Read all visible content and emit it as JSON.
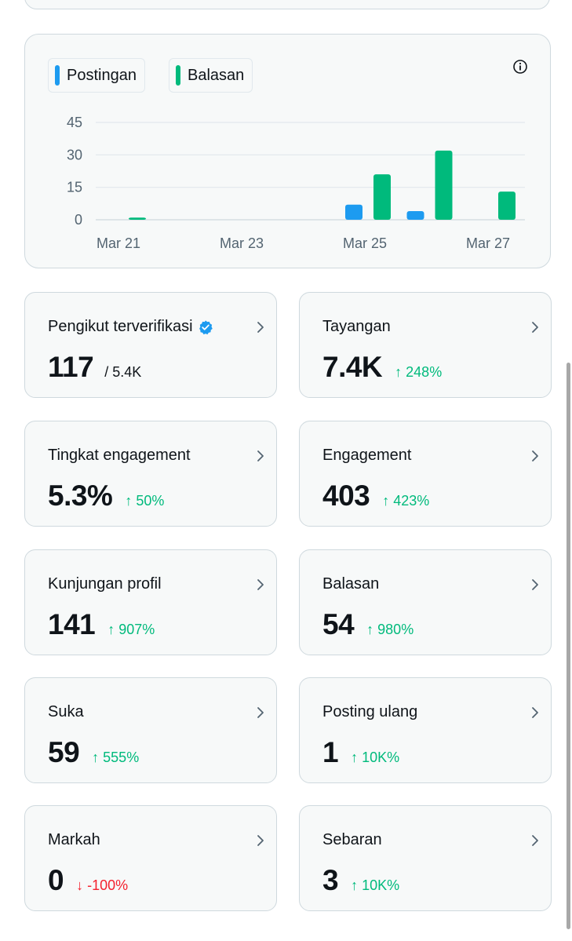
{
  "legend": {
    "posts_label": "Postingan",
    "replies_label": "Balasan",
    "posts_color": "#1d9bf0",
    "replies_color": "#00ba7c"
  },
  "icons": {
    "info": "info-icon",
    "chevron": "chevron-right-icon",
    "verified": "verified-badge-icon"
  },
  "chart_data": {
    "type": "bar",
    "x": [
      "Mar 21",
      "Mar 22",
      "Mar 23",
      "Mar 24",
      "Mar 25",
      "Mar 26",
      "Mar 27"
    ],
    "x_tick_labels": [
      "Mar 21",
      "Mar 23",
      "Mar 25",
      "Mar 27"
    ],
    "y_ticks": [
      0,
      15,
      30,
      45
    ],
    "ylim": [
      0,
      45
    ],
    "grid": true,
    "legend_position": "top-left",
    "series": [
      {
        "name": "Postingan",
        "color": "#1d9bf0",
        "values": [
          0,
          0,
          0,
          0,
          7,
          4,
          0
        ]
      },
      {
        "name": "Balasan",
        "color": "#00ba7c",
        "values": [
          1,
          0,
          0,
          0,
          21,
          32,
          13
        ]
      }
    ]
  },
  "stats": [
    {
      "label": "Pengikut terverifikasi",
      "value": "117",
      "sub": "/ 5.4K",
      "verified": true
    },
    {
      "label": "Tayangan",
      "value": "7.4K",
      "change": "↑ 248%",
      "direction": "up"
    },
    {
      "label": "Tingkat engagement",
      "value": "5.3%",
      "change": "↑ 50%",
      "direction": "up"
    },
    {
      "label": "Engagement",
      "value": "403",
      "change": "↑ 423%",
      "direction": "up"
    },
    {
      "label": "Kunjungan profil",
      "value": "141",
      "change": "↑ 907%",
      "direction": "up"
    },
    {
      "label": "Balasan",
      "value": "54",
      "change": "↑ 980%",
      "direction": "up"
    },
    {
      "label": "Suka",
      "value": "59",
      "change": "↑ 555%",
      "direction": "up"
    },
    {
      "label": "Posting ulang",
      "value": "1",
      "change": "↑ 10K%",
      "direction": "up"
    },
    {
      "label": "Markah",
      "value": "0",
      "change": "↓ -100%",
      "direction": "down"
    },
    {
      "label": "Sebaran",
      "value": "3",
      "change": "↑ 10K%",
      "direction": "up"
    }
  ]
}
